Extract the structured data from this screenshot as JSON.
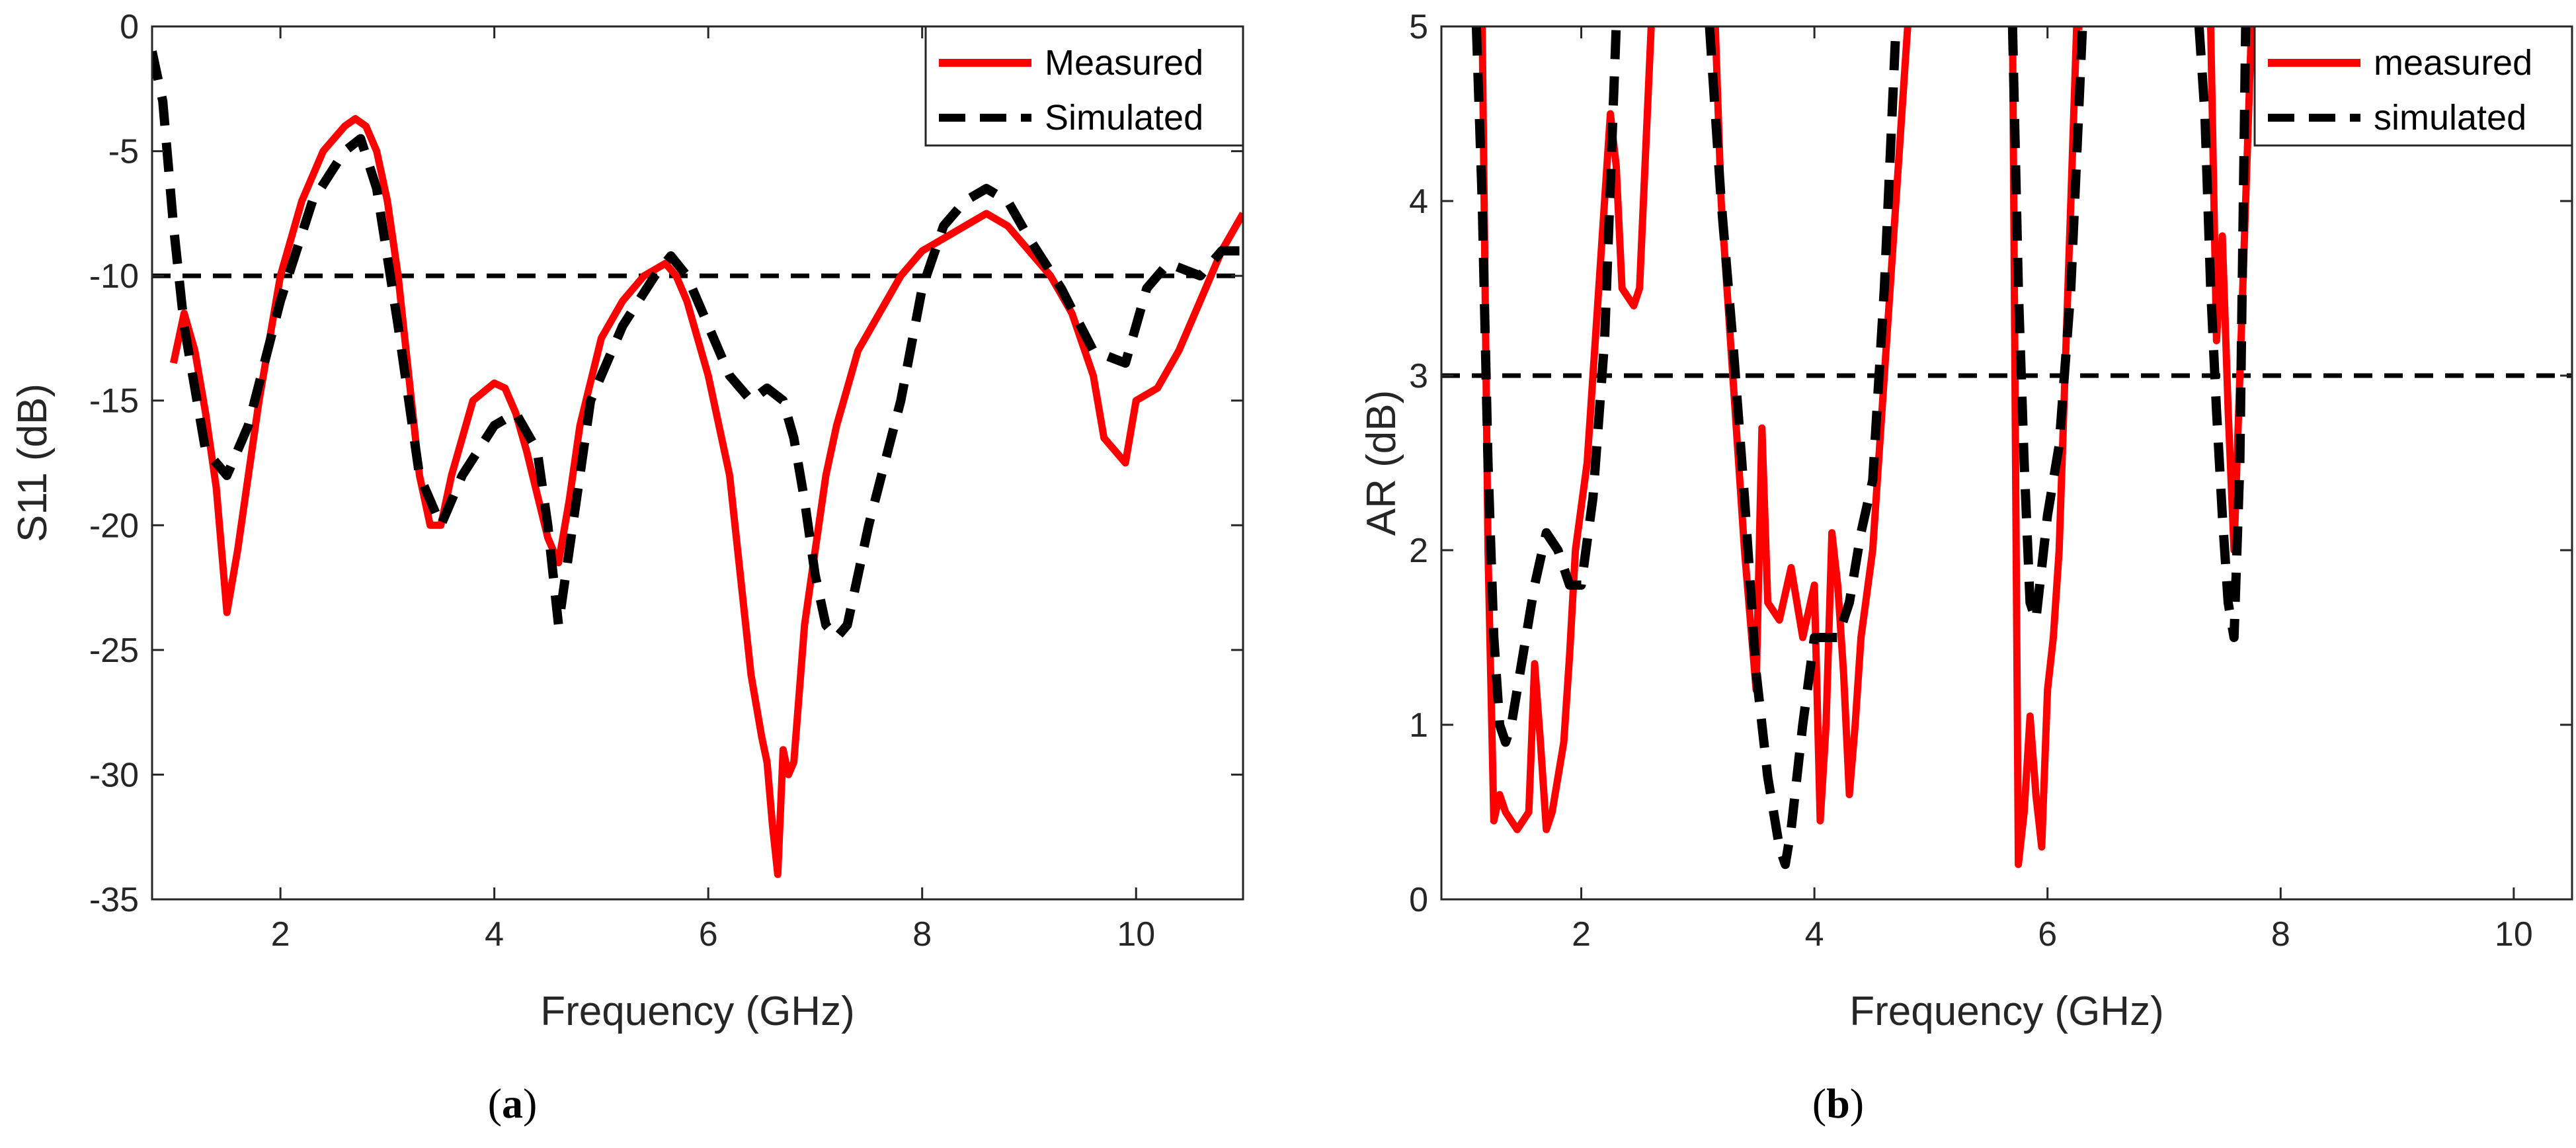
{
  "chart_data": [
    {
      "type": "line",
      "xlabel": "Frequency (GHz)",
      "ylabel": "S11 (dB)",
      "xlim": [
        0.8,
        11
      ],
      "ylim": [
        -35,
        0
      ],
      "xticks": [
        2,
        4,
        6,
        8,
        10
      ],
      "yticks": [
        0,
        -5,
        -10,
        -15,
        -20,
        -25,
        -30,
        -35
      ],
      "caption_letter": "a",
      "caption_open": "(",
      "caption_close": ")",
      "legend_position": "top-right",
      "series": [
        {
          "name": "Measured",
          "color": "#ff0000",
          "style": "solid",
          "x": [
            1.0,
            1.1,
            1.2,
            1.3,
            1.4,
            1.5,
            1.6,
            1.7,
            1.8,
            2.0,
            2.2,
            2.4,
            2.6,
            2.7,
            2.8,
            2.9,
            3.0,
            3.1,
            3.2,
            3.3,
            3.4,
            3.5,
            3.6,
            3.8,
            4.0,
            4.1,
            4.2,
            4.3,
            4.5,
            4.6,
            4.7,
            4.8,
            5.0,
            5.2,
            5.4,
            5.6,
            5.7,
            5.8,
            6.0,
            6.2,
            6.3,
            6.4,
            6.5,
            6.55,
            6.6,
            6.65,
            6.7,
            6.75,
            6.8,
            6.9,
            7.0,
            7.1,
            7.2,
            7.3,
            7.4,
            7.6,
            7.8,
            8.0,
            8.2,
            8.4,
            8.6,
            8.8,
            9.0,
            9.2,
            9.4,
            9.6,
            9.7,
            9.8,
            9.9,
            10.0,
            10.2,
            10.4,
            10.6,
            10.8,
            11.0
          ],
          "y": [
            -13.5,
            -11.5,
            -13,
            -15.5,
            -18.5,
            -23.5,
            -21,
            -18,
            -15,
            -10,
            -7,
            -5,
            -4,
            -3.7,
            -4,
            -5,
            -7,
            -10,
            -14,
            -18,
            -20,
            -20,
            -18,
            -15,
            -14.3,
            -14.5,
            -15.5,
            -17,
            -20.5,
            -21.5,
            -19,
            -16,
            -12.5,
            -11,
            -10,
            -9.5,
            -10,
            -11,
            -14,
            -18,
            -22,
            -26,
            -28.5,
            -29.5,
            -32,
            -34,
            -29,
            -30,
            -29.5,
            -24,
            -21,
            -18,
            -16,
            -14.5,
            -13,
            -11.5,
            -10,
            -9,
            -8.5,
            -8,
            -7.5,
            -8,
            -9,
            -10,
            -11.5,
            -14,
            -16.5,
            -17,
            -17.5,
            -15,
            -14.5,
            -13,
            -11,
            -9,
            -7.5
          ]
        },
        {
          "name": "Simulated",
          "color": "#000000",
          "style": "dashed",
          "x": [
            0.8,
            0.9,
            1.0,
            1.1,
            1.3,
            1.5,
            1.7,
            2.0,
            2.3,
            2.6,
            2.75,
            2.9,
            3.1,
            3.3,
            3.5,
            3.7,
            4.0,
            4.2,
            4.4,
            4.5,
            4.6,
            4.7,
            4.9,
            5.2,
            5.5,
            5.65,
            5.8,
            6.0,
            6.2,
            6.4,
            6.55,
            6.7,
            6.8,
            6.9,
            7.0,
            7.1,
            7.2,
            7.3,
            7.5,
            7.8,
            8.0,
            8.2,
            8.4,
            8.6,
            8.8,
            9.0,
            9.3,
            9.6,
            9.9,
            10.1,
            10.3,
            10.6,
            10.8,
            11.0
          ],
          "y": [
            -1,
            -3,
            -8,
            -12,
            -17,
            -18,
            -16,
            -11,
            -7,
            -5,
            -4.5,
            -6.5,
            -12,
            -18,
            -20,
            -18,
            -16,
            -15.5,
            -17,
            -20,
            -24,
            -21,
            -15,
            -12,
            -10,
            -9.2,
            -10,
            -12,
            -14,
            -15,
            -14.5,
            -15,
            -16.5,
            -19,
            -22,
            -24,
            -24.5,
            -24,
            -20,
            -15,
            -10.5,
            -8,
            -7,
            -6.5,
            -7,
            -8.5,
            -10.5,
            -13,
            -13.5,
            -10.5,
            -9.5,
            -10,
            -9,
            -9
          ]
        }
      ],
      "reference_line": {
        "y": -10,
        "color": "#000000",
        "style": "dashed"
      }
    },
    {
      "type": "line",
      "xlabel": "Frequency (GHz)",
      "ylabel": "AR (dB)",
      "xlim": [
        0.8,
        10.5
      ],
      "ylim": [
        0,
        5
      ],
      "xticks": [
        2,
        4,
        6,
        8,
        10
      ],
      "yticks": [
        0,
        1,
        2,
        3,
        4,
        5
      ],
      "caption_letter": "b",
      "caption_open": "(",
      "caption_close": ")",
      "legend_position": "top-right",
      "series": [
        {
          "name": "measured",
          "color": "#ff0000",
          "style": "solid",
          "segments": [
            {
              "x": [
                1.15,
                1.2,
                1.25,
                1.3,
                1.35,
                1.45,
                1.55,
                1.6,
                1.65,
                1.7,
                1.75,
                1.85,
                1.9,
                1.95,
                2.05,
                2.15,
                2.25,
                2.3,
                2.35,
                2.45,
                2.5,
                2.6
              ],
              "y": [
                5,
                2,
                0.45,
                0.6,
                0.5,
                0.4,
                0.5,
                1.35,
                0.9,
                0.4,
                0.5,
                0.9,
                1.4,
                2.0,
                2.5,
                3.5,
                4.5,
                4.2,
                3.5,
                3.4,
                3.5,
                5
              ]
            },
            {
              "x": [
                3.15,
                3.2,
                3.3,
                3.4,
                3.5,
                3.55,
                3.6,
                3.7,
                3.8,
                3.9,
                4.0,
                4.05,
                4.1,
                4.15,
                4.2,
                4.25,
                4.3,
                4.35,
                4.4,
                4.5,
                4.6,
                4.7,
                4.8
              ],
              "y": [
                5,
                4,
                3.0,
                2.0,
                1.2,
                2.7,
                1.7,
                1.6,
                1.9,
                1.5,
                1.8,
                0.45,
                1.0,
                2.1,
                1.8,
                1.3,
                0.6,
                1.0,
                1.5,
                2.0,
                3.0,
                4.0,
                5
              ]
            },
            {
              "x": [
                5.7,
                5.75,
                5.8,
                5.85,
                5.9,
                5.95,
                6.0,
                6.05,
                6.1,
                6.15,
                6.2,
                6.25,
                6.3
              ],
              "y": [
                5,
                0.2,
                0.5,
                1.05,
                0.6,
                0.3,
                1.2,
                1.5,
                2.0,
                3.0,
                4.0,
                5,
                5
              ]
            },
            {
              "x": [
                7.4,
                7.45,
                7.5,
                7.55,
                7.6,
                7.65,
                7.7,
                7.75
              ],
              "y": [
                5,
                3.2,
                3.8,
                2.8,
                2.0,
                3.0,
                4.0,
                5
              ]
            }
          ]
        },
        {
          "name": "simulated",
          "color": "#000000",
          "style": "dashed",
          "segments": [
            {
              "x": [
                1.1,
                1.15,
                1.2,
                1.25,
                1.3,
                1.35,
                1.4,
                1.5,
                1.6,
                1.7,
                1.8,
                1.9,
                2.0,
                2.1,
                2.2,
                2.3
              ],
              "y": [
                5,
                4.0,
                2.5,
                1.5,
                1.0,
                0.9,
                1.0,
                1.4,
                1.8,
                2.1,
                2.0,
                1.8,
                1.8,
                2.3,
                3.2,
                5
              ]
            },
            {
              "x": [
                3.1,
                3.2,
                3.3,
                3.4,
                3.5,
                3.6,
                3.7,
                3.75,
                3.8,
                3.9,
                4.0,
                4.1,
                4.2,
                4.3,
                4.4,
                4.5,
                4.6,
                4.7
              ],
              "y": [
                5,
                4.0,
                3.2,
                2.3,
                1.3,
                0.7,
                0.3,
                0.2,
                0.4,
                1.0,
                1.5,
                1.5,
                1.5,
                1.7,
                2.1,
                2.4,
                3.5,
                5
              ]
            },
            {
              "x": [
                5.7,
                5.75,
                5.8,
                5.85,
                5.9,
                6.0,
                6.1,
                6.2,
                6.3
              ],
              "y": [
                5,
                3.5,
                2.5,
                1.7,
                1.6,
                2.2,
                2.6,
                3.5,
                5
              ]
            },
            {
              "x": [
                7.3,
                7.35,
                7.4,
                7.45,
                7.5,
                7.55,
                7.6,
                7.65,
                7.7
              ],
              "y": [
                5,
                4.5,
                3.5,
                2.8,
                2.2,
                1.7,
                1.5,
                2.5,
                5
              ]
            }
          ]
        }
      ],
      "reference_line": {
        "y": 3,
        "color": "#000000",
        "style": "dashed"
      }
    }
  ]
}
